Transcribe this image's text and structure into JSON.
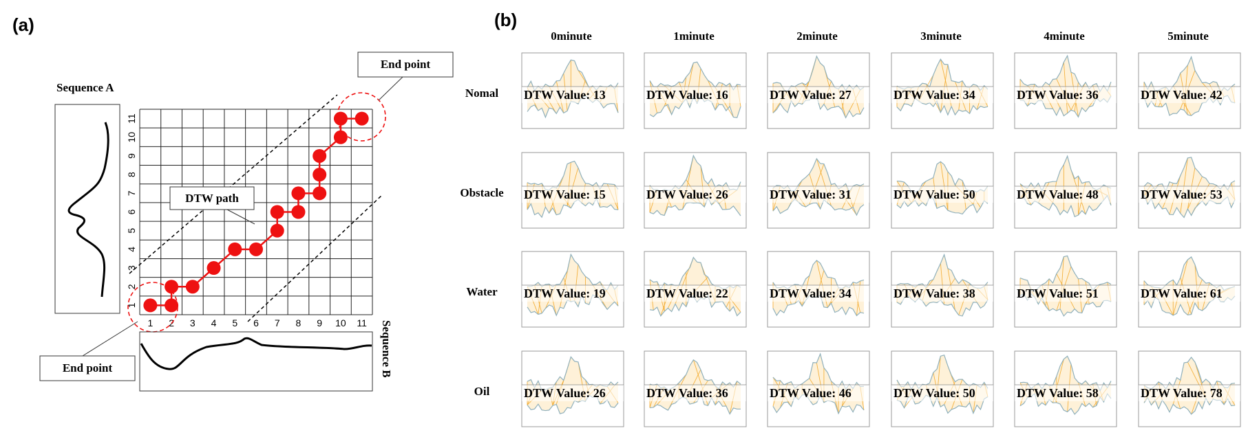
{
  "panel_a": {
    "label": "(a)",
    "sequence_a_label": "Sequence A",
    "sequence_b_label": "Sequence B",
    "end_point_top": "End point",
    "end_point_bottom": "End point",
    "dtw_path_label": "DTW path",
    "axis_ticks": [
      "1",
      "2",
      "3",
      "4",
      "5",
      "6",
      "7",
      "8",
      "9",
      "10",
      "11"
    ],
    "path_points": [
      [
        1,
        1
      ],
      [
        2,
        1
      ],
      [
        2,
        2
      ],
      [
        3,
        2
      ],
      [
        4,
        3
      ],
      [
        5,
        4
      ],
      [
        6,
        4
      ],
      [
        7,
        5
      ],
      [
        7,
        6
      ],
      [
        8,
        6
      ],
      [
        8,
        7
      ],
      [
        9,
        7
      ],
      [
        9,
        8
      ],
      [
        9,
        9
      ],
      [
        10,
        10
      ],
      [
        10,
        11
      ],
      [
        11,
        11
      ]
    ],
    "colors": {
      "path": "#ee1111",
      "grid": "#222222"
    }
  },
  "panel_b": {
    "label": "(b)",
    "columns": [
      "0minute",
      "1minute",
      "2minute",
      "3minute",
      "4minute",
      "5minute"
    ],
    "rows": [
      "Nomal",
      "Obstacle",
      "Water",
      "Oil"
    ],
    "dtw_prefix": "DTW Value: ",
    "dtw_values": [
      [
        13,
        16,
        27,
        34,
        36,
        42
      ],
      [
        15,
        26,
        31,
        50,
        48,
        53
      ],
      [
        19,
        22,
        34,
        38,
        51,
        61
      ],
      [
        26,
        36,
        46,
        50,
        58,
        78
      ]
    ],
    "colors": {
      "alignment": "#f2a623",
      "series": "#8fb0bc",
      "frame": "#999999"
    }
  }
}
